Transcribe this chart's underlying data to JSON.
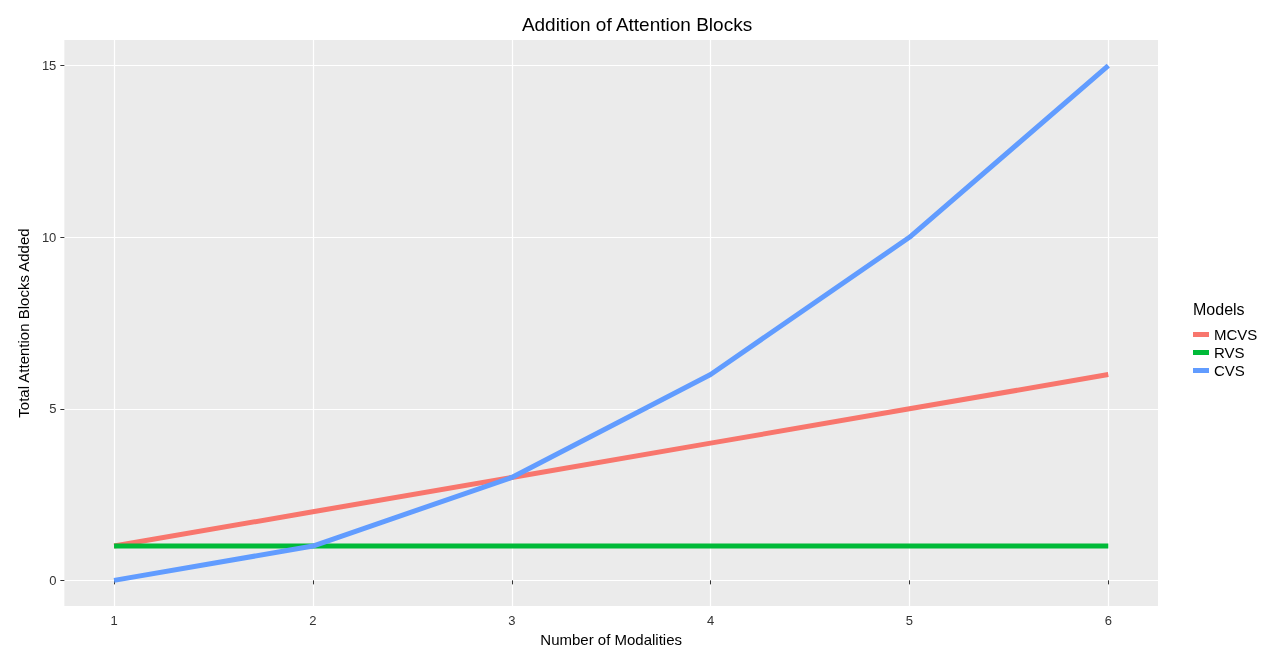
{
  "chart_data": {
    "type": "line",
    "title": "Addition of Attention Blocks",
    "xlabel": "Number of Modalities",
    "ylabel": "Total Attention Blocks Added",
    "legend_title": "Models",
    "x": [
      1,
      2,
      3,
      4,
      5,
      6
    ],
    "series": [
      {
        "name": "MCVS",
        "color": "#f8766d",
        "values": [
          1,
          2,
          3,
          4,
          5,
          6
        ]
      },
      {
        "name": "RVS",
        "color": "#00ba38",
        "values": [
          1,
          1,
          1,
          1,
          1,
          1
        ]
      },
      {
        "name": "CVS",
        "color": "#619cff",
        "values": [
          0,
          1,
          3,
          6,
          10,
          15
        ]
      }
    ],
    "xlim": [
      0.75,
      6.25
    ],
    "xticks": [
      1,
      2,
      3,
      4,
      5,
      6
    ],
    "ylim": [
      -0.75,
      15.75
    ],
    "yticks": [
      0,
      5,
      10,
      15
    ],
    "grid": true,
    "legend": "right",
    "marker": "none",
    "line_style": "solid"
  }
}
